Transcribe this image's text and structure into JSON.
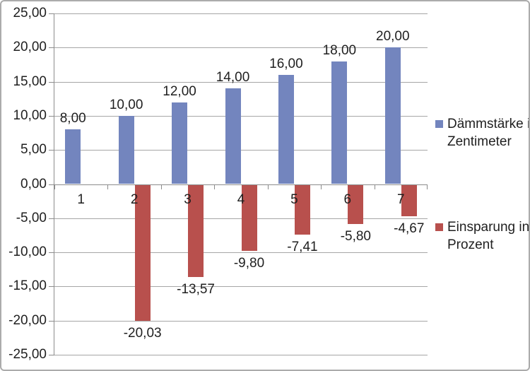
{
  "chart_data": {
    "type": "bar",
    "title": "",
    "xlabel": "",
    "ylabel": "",
    "categories": [
      "1",
      "2",
      "3",
      "4",
      "5",
      "6",
      "7"
    ],
    "series": [
      {
        "name": "Dämmstärke in Zentimeter",
        "color": "#7385be",
        "values": [
          8,
          10,
          12,
          14,
          16,
          18,
          20
        ],
        "value_labels": [
          "8,00",
          "10,00",
          "12,00",
          "14,00",
          "16,00",
          "18,00",
          "20,00"
        ]
      },
      {
        "name": "Einsparung in Prozent",
        "color": "#b8504d",
        "values": [
          null,
          -20.03,
          -13.57,
          -9.8,
          -7.41,
          -5.8,
          -4.67
        ],
        "value_labels": [
          "",
          "-20,03",
          "-13,57",
          "-9,80",
          "-7,41",
          "-5,80",
          "-4,67"
        ]
      }
    ],
    "ylim": [
      -25,
      25
    ],
    "ytick_step": 5,
    "ytick_labels": [
      "25,00",
      "20,00",
      "15,00",
      "10,00",
      "5,00",
      "0,00",
      "-5,00",
      "-10,00",
      "-15,00",
      "-20,00",
      "-25,00"
    ],
    "grid": true,
    "legend_position": "right",
    "number_format": "german-decimal-comma"
  },
  "legend": {
    "entries": [
      {
        "line1": "Dämmstärke in",
        "line2": "Zentimeter"
      },
      {
        "line1": "Einsparung in",
        "line2": "Prozent"
      }
    ]
  },
  "colors": {
    "series_daemmstaerke": "#7385be",
    "series_einsparung": "#b8504d",
    "gridline": "#a6a6a6",
    "axis": "#8c8c8c",
    "text": "#1f1f1f",
    "border": "#ababab",
    "background": "#ffffff"
  }
}
